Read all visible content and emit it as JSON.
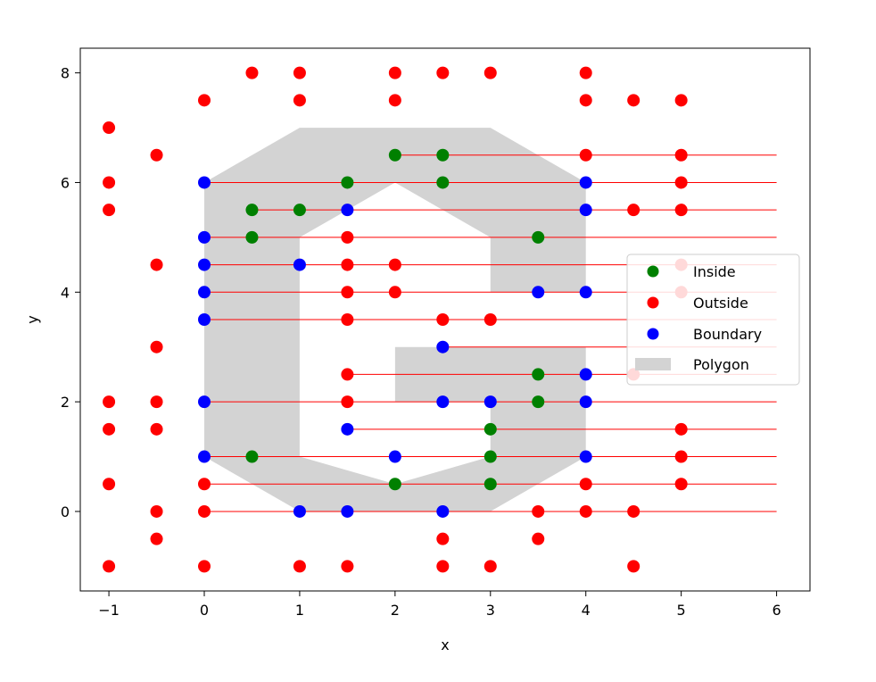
{
  "chart_data": {
    "type": "scatter",
    "xlabel": "x",
    "ylabel": "y",
    "xlim": [
      -1.3,
      6.35
    ],
    "ylim": [
      -1.45,
      8.45
    ],
    "xticks": [
      -1,
      0,
      1,
      2,
      3,
      4,
      5,
      6
    ],
    "yticks": [
      0,
      2,
      4,
      6,
      8
    ],
    "grid": false,
    "legend_position": "center-right",
    "polygon": {
      "name": "Polygon",
      "color": "#d3d3d3",
      "outer": [
        [
          0,
          1
        ],
        [
          1,
          0
        ],
        [
          3,
          0
        ],
        [
          4,
          1
        ],
        [
          4,
          3
        ],
        [
          2,
          3
        ],
        [
          2,
          2
        ],
        [
          3,
          2
        ],
        [
          3,
          1
        ],
        [
          2,
          0.5
        ],
        [
          1,
          1
        ],
        [
          1,
          5
        ],
        [
          2,
          6
        ],
        [
          3,
          5
        ],
        [
          3,
          4
        ],
        [
          4,
          4
        ],
        [
          4,
          6
        ],
        [
          3,
          7
        ],
        [
          1,
          7
        ],
        [
          0,
          6
        ]
      ]
    },
    "series": [
      {
        "name": "Inside",
        "color": "#008000",
        "points": [
          [
            2,
            6.5
          ],
          [
            2.5,
            6.5
          ],
          [
            1.5,
            6
          ],
          [
            2.5,
            6
          ],
          [
            0.5,
            5.5
          ],
          [
            1,
            5.5
          ],
          [
            0.5,
            5
          ],
          [
            3.5,
            5
          ],
          [
            3.5,
            2.5
          ],
          [
            3.5,
            2
          ],
          [
            3,
            1.5
          ],
          [
            0.5,
            1
          ],
          [
            3,
            1
          ],
          [
            2,
            0.5
          ],
          [
            3,
            0.5
          ]
        ]
      },
      {
        "name": "Outside",
        "color": "#ff0000",
        "points": [
          [
            0.5,
            8
          ],
          [
            1,
            8
          ],
          [
            2,
            8
          ],
          [
            2.5,
            8
          ],
          [
            3,
            8
          ],
          [
            4,
            8
          ],
          [
            0,
            7.5
          ],
          [
            1,
            7.5
          ],
          [
            2,
            7.5
          ],
          [
            4,
            7.5
          ],
          [
            4.5,
            7.5
          ],
          [
            5,
            7.5
          ],
          [
            -1,
            7
          ],
          [
            -0.5,
            6.5
          ],
          [
            4,
            6.5
          ],
          [
            5,
            6.5
          ],
          [
            -1,
            6
          ],
          [
            5,
            6
          ],
          [
            -1,
            5.5
          ],
          [
            4.5,
            5.5
          ],
          [
            5,
            5.5
          ],
          [
            1.5,
            5
          ],
          [
            -0.5,
            4.5
          ],
          [
            1.5,
            4.5
          ],
          [
            2,
            4.5
          ],
          [
            5,
            4.5
          ],
          [
            1.5,
            4
          ],
          [
            2,
            4
          ],
          [
            5,
            4
          ],
          [
            1.5,
            3.5
          ],
          [
            2.5,
            3.5
          ],
          [
            3,
            3.5
          ],
          [
            -0.5,
            3
          ],
          [
            1.5,
            2.5
          ],
          [
            4.5,
            2.5
          ],
          [
            -1,
            2
          ],
          [
            -0.5,
            2
          ],
          [
            1.5,
            2
          ],
          [
            -1,
            1.5
          ],
          [
            -0.5,
            1.5
          ],
          [
            5,
            1.5
          ],
          [
            5,
            1
          ],
          [
            -1,
            0.5
          ],
          [
            0,
            0.5
          ],
          [
            4,
            0.5
          ],
          [
            5,
            0.5
          ],
          [
            -0.5,
            0
          ],
          [
            0,
            0
          ],
          [
            3.5,
            0
          ],
          [
            4,
            0
          ],
          [
            4.5,
            0
          ],
          [
            -0.5,
            -0.5
          ],
          [
            2.5,
            -0.5
          ],
          [
            3.5,
            -0.5
          ],
          [
            -1,
            -1
          ],
          [
            0,
            -1
          ],
          [
            1,
            -1
          ],
          [
            1.5,
            -1
          ],
          [
            2.5,
            -1
          ],
          [
            3,
            -1
          ],
          [
            4.5,
            -1
          ]
        ]
      },
      {
        "name": "Boundary",
        "color": "#0000ff",
        "points": [
          [
            0,
            6
          ],
          [
            4,
            6
          ],
          [
            1.5,
            5.5
          ],
          [
            4,
            5.5
          ],
          [
            0,
            5
          ],
          [
            0,
            4.5
          ],
          [
            1,
            4.5
          ],
          [
            0,
            4
          ],
          [
            3.5,
            4
          ],
          [
            4,
            4
          ],
          [
            0,
            3.5
          ],
          [
            2.5,
            3
          ],
          [
            4,
            2.5
          ],
          [
            0,
            2
          ],
          [
            2.5,
            2
          ],
          [
            3,
            2
          ],
          [
            4,
            2
          ],
          [
            1.5,
            1.5
          ],
          [
            0,
            1
          ],
          [
            2,
            1
          ],
          [
            4,
            1
          ],
          [
            1,
            0
          ],
          [
            1.5,
            0
          ],
          [
            2.5,
            0
          ]
        ]
      }
    ],
    "rays": {
      "color": "#ff0000",
      "x_end": 6,
      "starts": [
        [
          2,
          6.5
        ],
        [
          0,
          6
        ],
        [
          0.5,
          5.5
        ],
        [
          0,
          5
        ],
        [
          0,
          4.5
        ],
        [
          0,
          4
        ],
        [
          0,
          3.5
        ],
        [
          2.5,
          3
        ],
        [
          1.5,
          2.5
        ],
        [
          0,
          2
        ],
        [
          1.5,
          1.5
        ],
        [
          0,
          1
        ],
        [
          0,
          0.5
        ],
        [
          0,
          0
        ]
      ]
    }
  }
}
